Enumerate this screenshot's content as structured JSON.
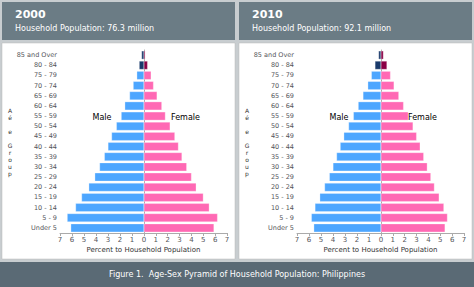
{
  "chart_data": [
    {
      "type": "bar",
      "orientation": "horizontal",
      "title": "2000",
      "subtitle": "Household Population: 76.3 million",
      "categories": [
        "Under 5",
        "5 - 9",
        "10 - 14",
        "15 - 19",
        "20 - 24",
        "25 - 29",
        "30 - 34",
        "35 - 39",
        "40 - 44",
        "45 - 49",
        "50 - 54",
        "55 - 59",
        "60 - 64",
        "65 - 69",
        "70 - 74",
        "75 - 79",
        "80 - 84",
        "85 and Over"
      ],
      "series": [
        {
          "name": "Male",
          "values": [
            6.1,
            6.4,
            5.7,
            5.2,
            4.6,
            4.1,
            3.7,
            3.3,
            3.0,
            2.7,
            2.3,
            1.9,
            1.6,
            1.2,
            0.9,
            0.6,
            0.4,
            0.2
          ],
          "colors": [
            "#4DA6FF",
            "#4DA6FF",
            "#4DA6FF",
            "#4DA6FF",
            "#4DA6FF",
            "#4DA6FF",
            "#4DA6FF",
            "#4DA6FF",
            "#4DA6FF",
            "#4DA6FF",
            "#4DA6FF",
            "#4DA6FF",
            "#4DA6FF",
            "#4DA6FF",
            "#4DA6FF",
            "#4DA6FF",
            "#1a3a6b",
            "#1a3a6b"
          ]
        },
        {
          "name": "Female",
          "values": [
            5.9,
            6.2,
            5.5,
            5.0,
            4.4,
            4.0,
            3.6,
            3.2,
            2.9,
            2.6,
            2.2,
            1.8,
            1.5,
            1.1,
            0.8,
            0.6,
            0.3,
            0.1
          ],
          "colors": [
            "#FF69B4",
            "#FF69B4",
            "#FF69B4",
            "#FF69B4",
            "#FF69B4",
            "#FF69B4",
            "#FF69B4",
            "#FF69B4",
            "#FF69B4",
            "#FF69B4",
            "#FF69B4",
            "#FF69B4",
            "#FF69B4",
            "#FF69B4",
            "#FF69B4",
            "#FF69B4",
            "#8B0045",
            "#8B0045"
          ]
        }
      ],
      "xlabel": "Percent to Household Population",
      "ylabel": "A\né\n\ne\n\nG\nr\no\nu\np",
      "xlim": [
        0,
        7
      ],
      "xticks": [
        0,
        1,
        2,
        3,
        4,
        5,
        6,
        7
      ],
      "grid": false
    },
    {
      "type": "bar",
      "orientation": "horizontal",
      "title": "2010",
      "subtitle": "Household Population: 92.1 million",
      "categories": [
        "Under 5",
        "5 - 9",
        "10 - 14",
        "15 - 19",
        "20 - 24",
        "25 - 29",
        "30 - 34",
        "35 - 39",
        "40 - 44",
        "45 - 49",
        "50 - 54",
        "55 - 59",
        "60 - 64",
        "65 - 69",
        "70 - 74",
        "75 - 79",
        "80 - 84",
        "85 and Over"
      ],
      "series": [
        {
          "name": "Male",
          "values": [
            5.6,
            5.8,
            5.5,
            5.1,
            4.7,
            4.3,
            4.0,
            3.7,
            3.4,
            3.1,
            2.7,
            2.3,
            1.9,
            1.5,
            1.1,
            0.8,
            0.5,
            0.2
          ],
          "colors": [
            "#4DA6FF",
            "#4DA6FF",
            "#4DA6FF",
            "#4DA6FF",
            "#4DA6FF",
            "#4DA6FF",
            "#4DA6FF",
            "#4DA6FF",
            "#4DA6FF",
            "#4DA6FF",
            "#4DA6FF",
            "#4DA6FF",
            "#4DA6FF",
            "#4DA6FF",
            "#4DA6FF",
            "#4DA6FF",
            "#1a3a6b",
            "#1a3a6b"
          ]
        },
        {
          "name": "Female",
          "values": [
            5.4,
            5.6,
            5.3,
            4.9,
            4.5,
            4.2,
            3.9,
            3.6,
            3.3,
            3.0,
            2.7,
            2.3,
            1.9,
            1.5,
            1.1,
            0.8,
            0.5,
            0.2
          ],
          "colors": [
            "#FF69B4",
            "#FF69B4",
            "#FF69B4",
            "#FF69B4",
            "#FF69B4",
            "#FF69B4",
            "#FF69B4",
            "#FF69B4",
            "#FF69B4",
            "#FF69B4",
            "#FF69B4",
            "#FF69B4",
            "#FF69B4",
            "#FF69B4",
            "#FF69B4",
            "#FF69B4",
            "#8B0045",
            "#8B0045"
          ]
        }
      ],
      "xlabel": "Percent to Household Population",
      "ylabel": "A\né\n\ne\n\nG\nr\no\nu\np",
      "xlim": [
        0,
        7
      ],
      "xticks": [
        0,
        1,
        2,
        3,
        4,
        5,
        6,
        7
      ],
      "grid": false
    }
  ],
  "caption": "Figure 1.  Age-Sex Pyramid of Household Population: Philippines"
}
